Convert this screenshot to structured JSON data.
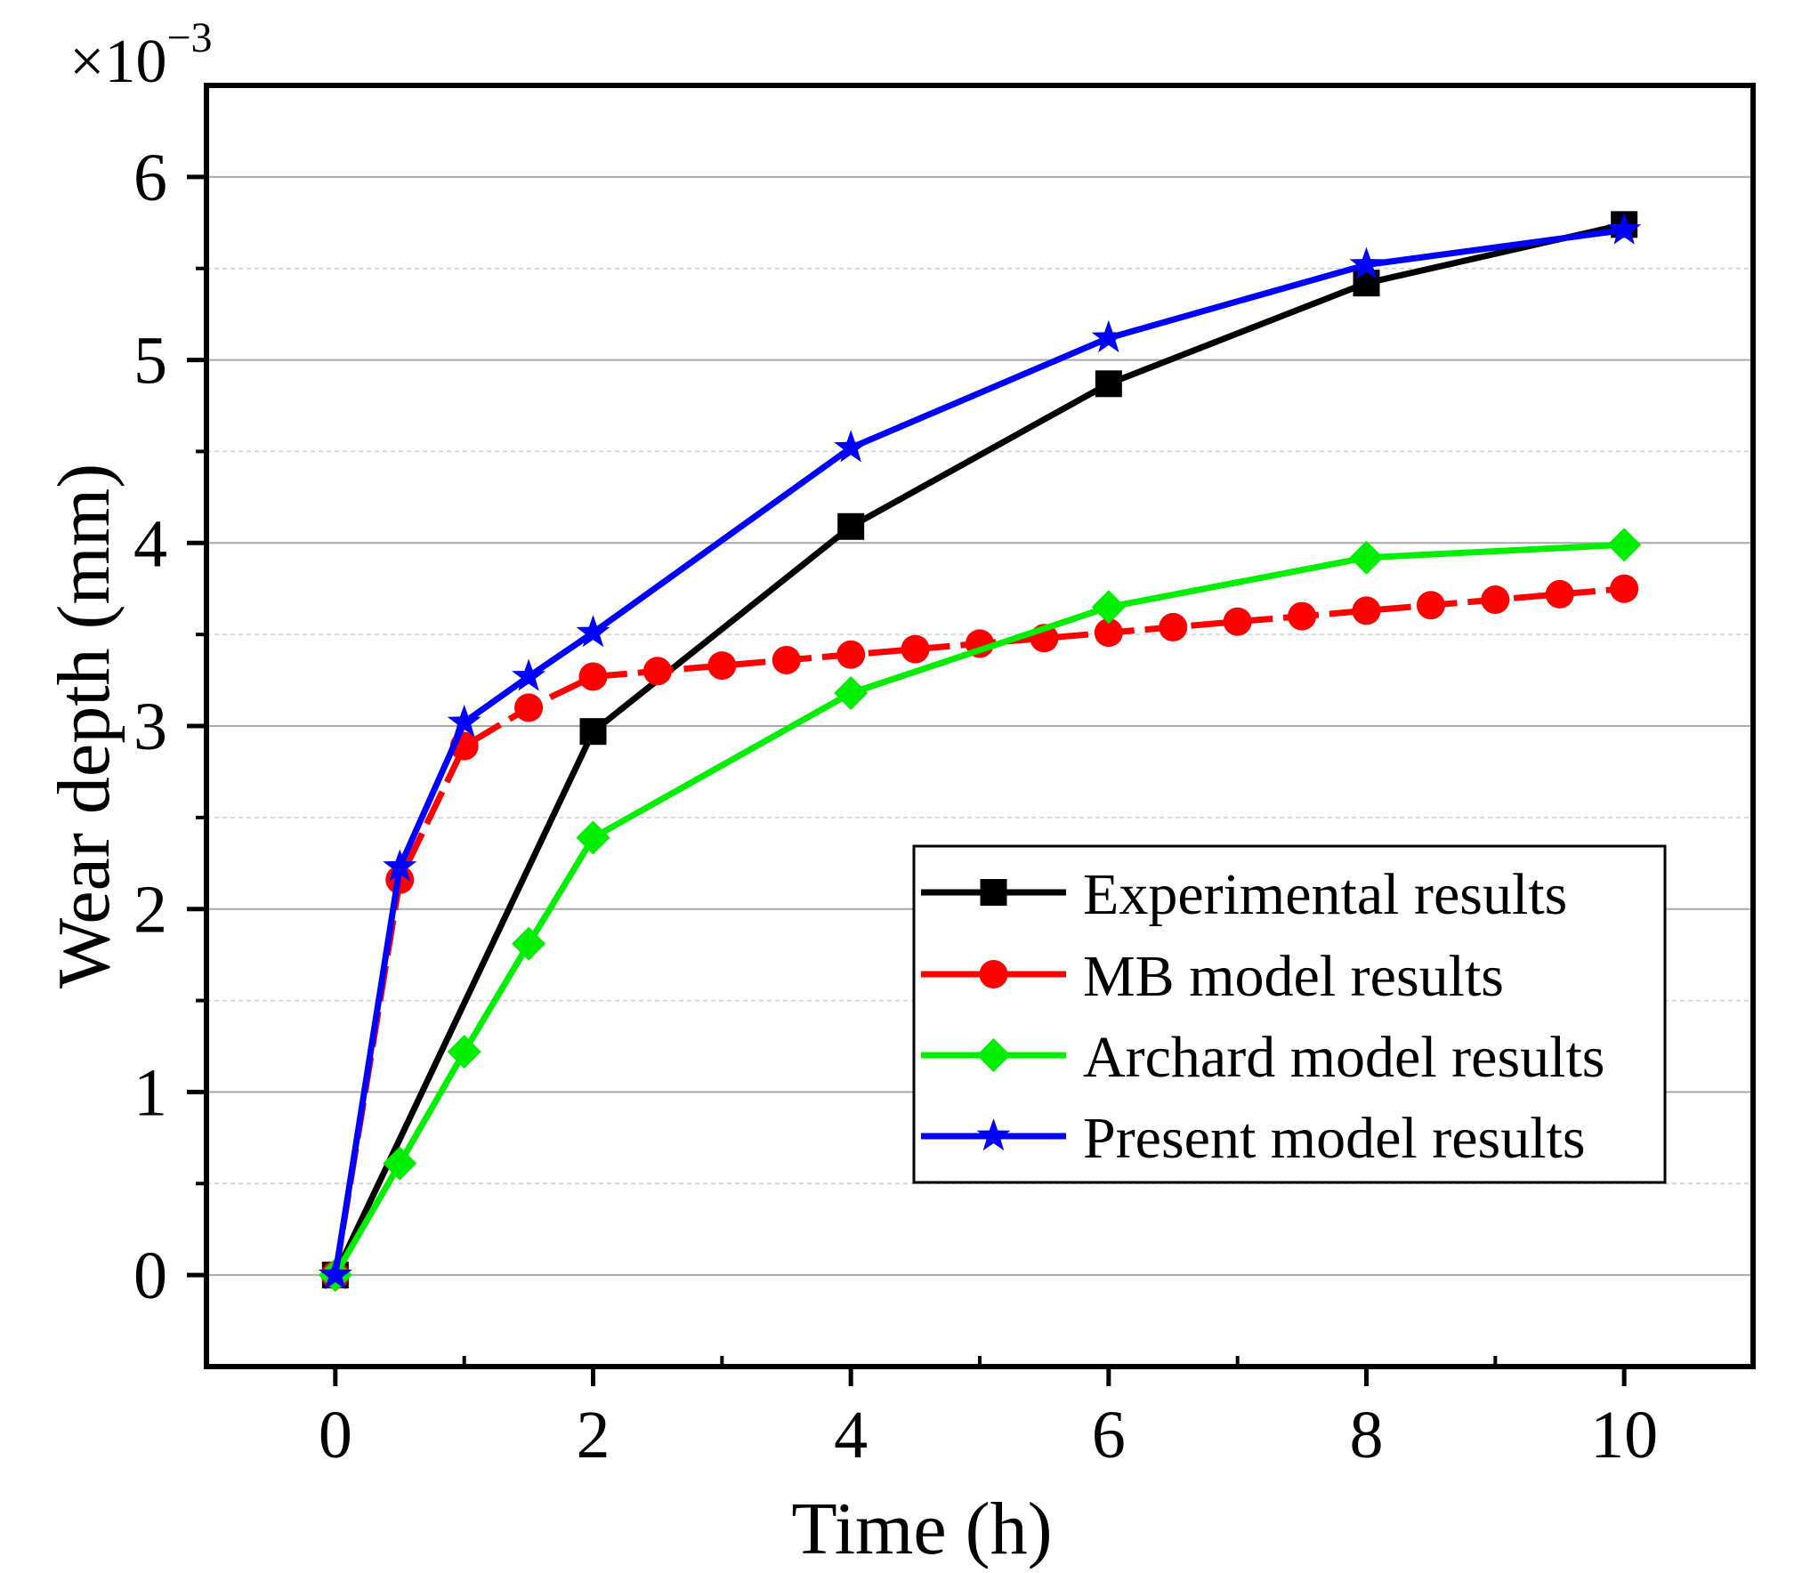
{
  "chart_data": {
    "type": "line",
    "title": "",
    "xlabel": "Time (h)",
    "ylabel": "Wear depth (mm)",
    "y_multiplier": {
      "prefix": "×10",
      "exponent": "−3"
    },
    "xlim": [
      -1,
      11
    ],
    "ylim": [
      -0.5,
      6.5
    ],
    "xticks": [
      0,
      2,
      4,
      6,
      8,
      10
    ],
    "xtick_labels": [
      "0",
      "2",
      "4",
      "6",
      "8",
      "10"
    ],
    "x_minor_ticks": [
      1,
      3,
      5,
      7,
      9
    ],
    "yticks": [
      0,
      1,
      2,
      3,
      4,
      5,
      6
    ],
    "ytick_labels": [
      "0",
      "1",
      "2",
      "3",
      "4",
      "5",
      "6"
    ],
    "y_minor_ticks": [
      0.5,
      1.5,
      2.5,
      3.5,
      4.5,
      5.5
    ],
    "grid": true,
    "legend_position": "bottom-right",
    "series": [
      {
        "name": "Experimental results",
        "color": "#000000",
        "marker": "square",
        "dashed": false,
        "x": [
          0,
          2,
          4,
          6,
          8,
          10
        ],
        "y": [
          0,
          2.97,
          4.09,
          4.87,
          5.42,
          5.74
        ]
      },
      {
        "name": "MB model results",
        "color": "#ff0000",
        "marker": "circle",
        "dashed": true,
        "x": [
          0,
          0.5,
          1,
          1.5,
          2,
          2.5,
          3,
          3.5,
          4,
          4.5,
          5,
          5.5,
          6,
          6.5,
          7,
          7.5,
          8,
          8.5,
          9,
          9.5,
          10
        ],
        "y": [
          0,
          2.16,
          2.89,
          3.1,
          3.27,
          3.3,
          3.33,
          3.36,
          3.39,
          3.42,
          3.45,
          3.48,
          3.51,
          3.54,
          3.57,
          3.6,
          3.63,
          3.66,
          3.69,
          3.72,
          3.75
        ]
      },
      {
        "name": "Archard model results",
        "color": "#00ee00",
        "marker": "diamond",
        "dashed": false,
        "x": [
          0,
          0.5,
          1,
          1.5,
          2,
          4,
          6,
          8,
          10
        ],
        "y": [
          0,
          0.61,
          1.22,
          1.81,
          2.39,
          3.18,
          3.65,
          3.92,
          3.99
        ]
      },
      {
        "name": "Present model results",
        "color": "#0000ff",
        "marker": "star",
        "dashed": false,
        "x": [
          0,
          0.5,
          1,
          1.5,
          2,
          4,
          6,
          8,
          10
        ],
        "y": [
          0,
          2.23,
          3.02,
          3.27,
          3.51,
          4.52,
          5.12,
          5.52,
          5.71
        ]
      }
    ]
  }
}
